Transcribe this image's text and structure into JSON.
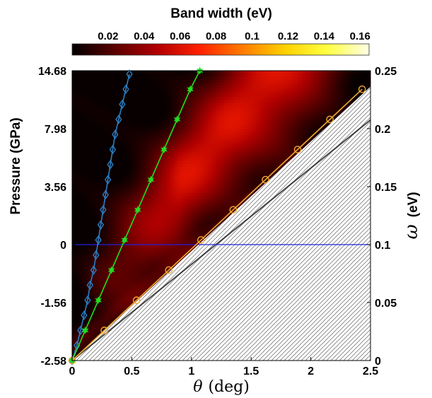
{
  "chart_data": {
    "type": "heatmap",
    "colorbar": {
      "title": "Band width (eV)",
      "ticks": [
        "0.02",
        "0.04",
        "0.06",
        "0.08",
        "0.1",
        "0.12",
        "0.14",
        "0.16"
      ],
      "range": [
        0,
        0.165
      ],
      "colors": [
        "#000000",
        "#5a0000",
        "#b00000",
        "#ff2000",
        "#ff7a00",
        "#ffd000",
        "#ffff40",
        "#ffffe6"
      ]
    },
    "xlabel_symbol": "θ",
    "xlabel_unit": "(deg)",
    "xlim": [
      0,
      2.5
    ],
    "xticks": [
      "0",
      "0.5",
      "1",
      "1.5",
      "2",
      "2.5"
    ],
    "left_axis": {
      "label": "Pressure  (GPa)",
      "ticks": [
        {
          "label": "14.68",
          "omega": 0.25
        },
        {
          "label": "7.98",
          "omega": 0.2
        },
        {
          "label": "3.56",
          "omega": 0.15
        },
        {
          "label": "0",
          "omega": 0.1
        },
        {
          "label": "-1.56",
          "omega": 0.05
        },
        {
          "label": "-2.58",
          "omega": 0.0
        }
      ]
    },
    "right_axis": {
      "label_symbol": "ω",
      "label_unit": "(eV)",
      "ylim": [
        0,
        0.25
      ],
      "ticks": [
        "0",
        "0.05",
        "0.1",
        "0.15",
        "0.2",
        "0.25"
      ]
    },
    "reference_line": {
      "omega": 0.1,
      "color": "#2222dd"
    },
    "series": [
      {
        "marker": "diamond",
        "color": "#2b7fc4",
        "points": [
          [
            0.0,
            0.0
          ],
          [
            0.04,
            0.013
          ],
          [
            0.07,
            0.026
          ],
          [
            0.1,
            0.039
          ],
          [
            0.13,
            0.052
          ],
          [
            0.15,
            0.065
          ],
          [
            0.18,
            0.078
          ],
          [
            0.2,
            0.091
          ],
          [
            0.22,
            0.104
          ],
          [
            0.24,
            0.117
          ],
          [
            0.26,
            0.13
          ],
          [
            0.28,
            0.143
          ],
          [
            0.3,
            0.156
          ],
          [
            0.32,
            0.169
          ],
          [
            0.34,
            0.182
          ],
          [
            0.36,
            0.195
          ],
          [
            0.39,
            0.208
          ],
          [
            0.42,
            0.221
          ],
          [
            0.45,
            0.234
          ],
          [
            0.48,
            0.247
          ]
        ]
      },
      {
        "marker": "hexagram",
        "color": "#22dd22",
        "points": [
          [
            0.0,
            0.0
          ],
          [
            0.11,
            0.026
          ],
          [
            0.22,
            0.052
          ],
          [
            0.33,
            0.078
          ],
          [
            0.44,
            0.104
          ],
          [
            0.55,
            0.13
          ],
          [
            0.66,
            0.156
          ],
          [
            0.77,
            0.182
          ],
          [
            0.88,
            0.208
          ],
          [
            0.99,
            0.234
          ],
          [
            1.07,
            0.25
          ]
        ]
      },
      {
        "marker": "circle",
        "color": "#f0a830",
        "points": [
          [
            0.0,
            0.0
          ],
          [
            0.27,
            0.026
          ],
          [
            0.54,
            0.052
          ],
          [
            0.81,
            0.078
          ],
          [
            1.08,
            0.104
          ],
          [
            1.35,
            0.13
          ],
          [
            1.62,
            0.156
          ],
          [
            1.89,
            0.182
          ],
          [
            2.16,
            0.208
          ],
          [
            2.43,
            0.234
          ]
        ]
      }
    ],
    "hatched_region": "below omega = 0.0945 * theta (hatched, no data)"
  }
}
